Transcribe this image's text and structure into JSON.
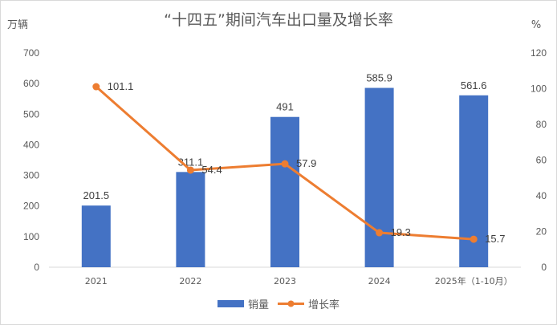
{
  "chart_data": {
    "type": "bar",
    "title": "“十四五”期间汽车出口量及增长率",
    "categories": [
      "2021",
      "2022",
      "2023",
      "2024",
      "2025年（1-10月）"
    ],
    "series": [
      {
        "name": "销量",
        "type": "bar",
        "axis": "left",
        "values": [
          201.5,
          311.1,
          491,
          585.9,
          561.6
        ],
        "labels": [
          "201.5",
          "311.1",
          "491",
          "585.9",
          "561.6"
        ],
        "color": "#4472c4"
      },
      {
        "name": "增长率",
        "type": "line",
        "axis": "right",
        "values": [
          101.1,
          54.4,
          57.9,
          19.3,
          15.7
        ],
        "labels": [
          "101.1",
          "54.4",
          "57.9",
          "19.3",
          "15.7"
        ],
        "color": "#ed7d31"
      }
    ],
    "y_left": {
      "unit": "万辆",
      "ylim": [
        0,
        700
      ],
      "ticks": [
        "0",
        "100",
        "200",
        "300",
        "400",
        "500",
        "600",
        "700"
      ]
    },
    "y_right": {
      "unit": "%",
      "ylim": [
        0,
        120
      ],
      "ticks": [
        "0",
        "20",
        "40",
        "60",
        "80",
        "100",
        "120"
      ]
    },
    "grid": false,
    "legend": "bottom-center"
  }
}
